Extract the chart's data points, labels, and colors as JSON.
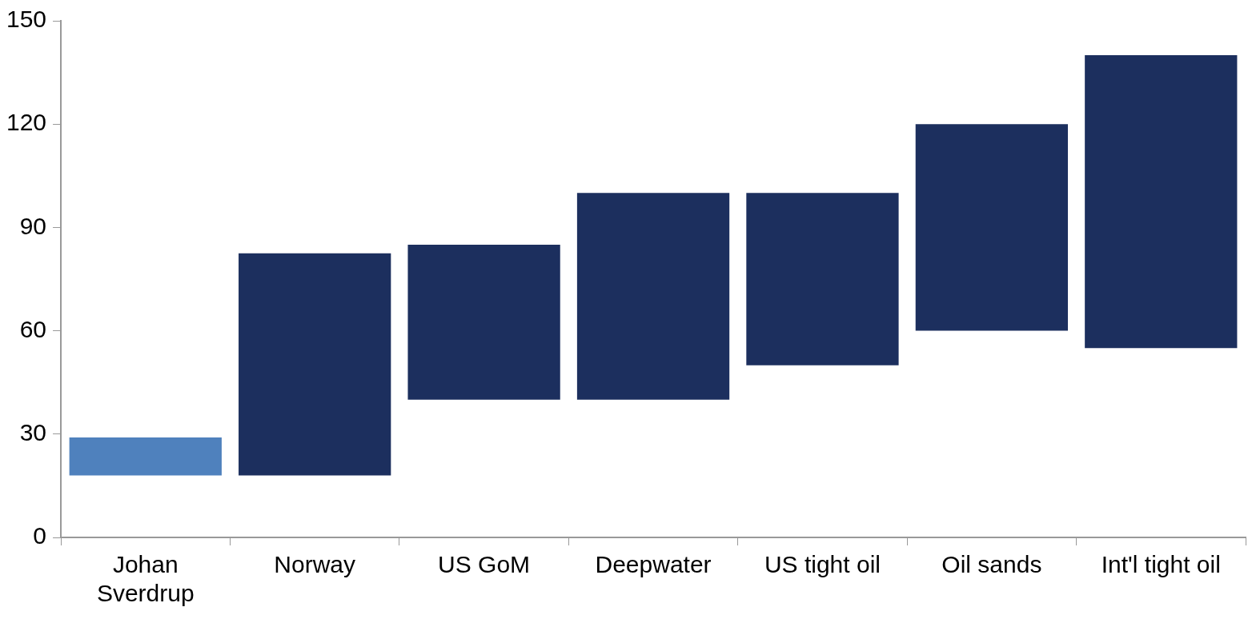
{
  "chart_data": {
    "type": "bar",
    "categories": [
      "Johan Sverdrup",
      "Norway",
      "US GoM",
      "Deepwater",
      "US tight oil",
      "Oil sands",
      "Int'l tight oil"
    ],
    "values": [
      11,
      64.5,
      45,
      60,
      50,
      60,
      85
    ],
    "base": [
      18,
      18,
      40,
      40,
      50,
      60,
      55
    ],
    "colors": [
      "#4f81bd",
      "#1c2f5e",
      "#1c2f5e",
      "#1c2f5e",
      "#1c2f5e",
      "#1c2f5e",
      "#1c2f5e"
    ],
    "ylim": [
      0,
      150
    ],
    "yticks": [
      0,
      30,
      60,
      90,
      120,
      150
    ],
    "grid": false,
    "legend": false
  }
}
